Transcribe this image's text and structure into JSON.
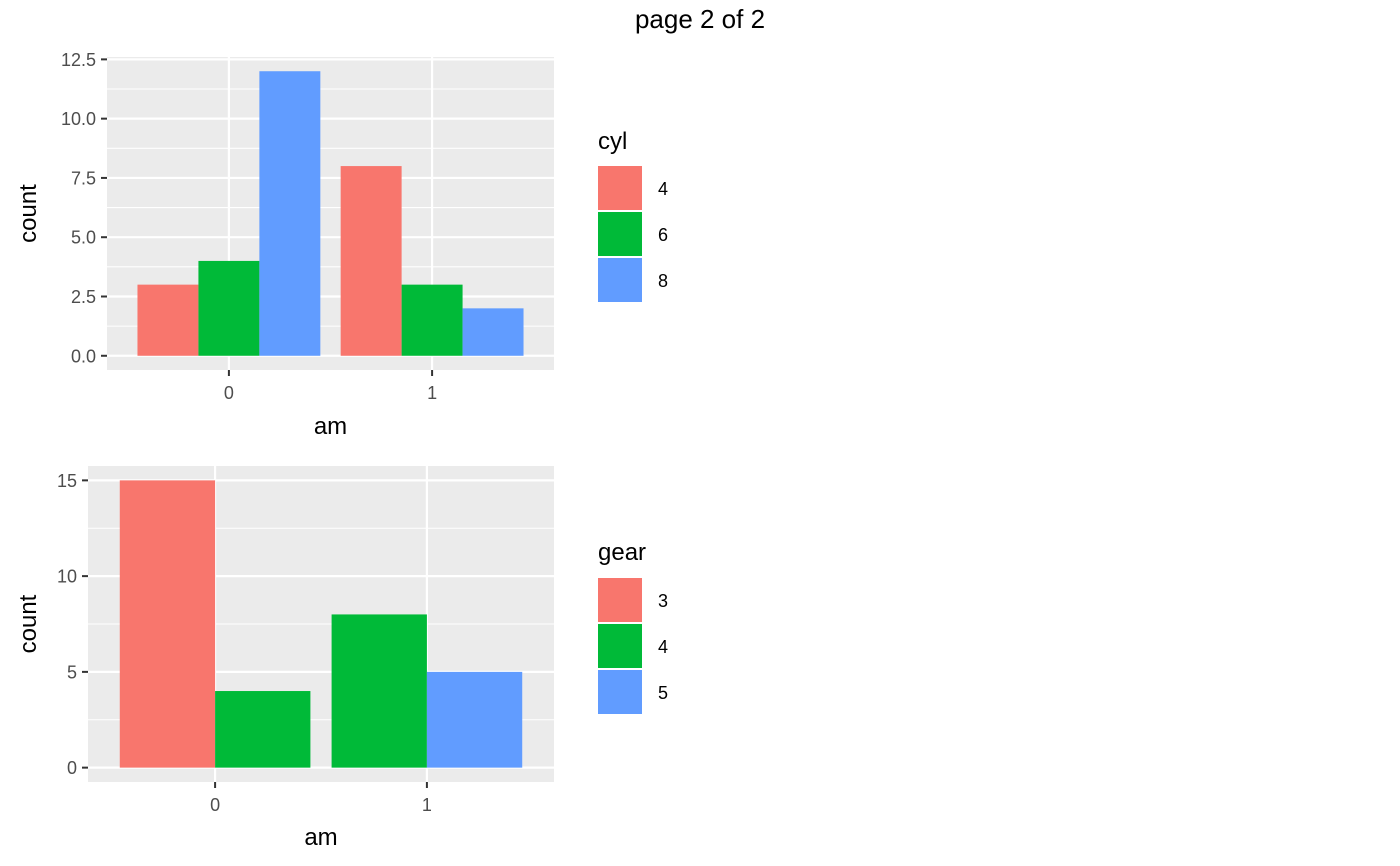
{
  "page_title": "page 2 of 2",
  "colors": {
    "panel_bg": "#EBEBEB",
    "grid": "#FFFFFF",
    "axis_text": "#4D4D4D",
    "tick": "#333333"
  },
  "chart_data": [
    {
      "type": "bar",
      "position": "dodge",
      "xlabel": "am",
      "ylabel": "count",
      "categories": [
        "0",
        "1"
      ],
      "ylim": [
        -0.6,
        12.6
      ],
      "yticks": [
        0,
        2.5,
        5,
        7.5,
        10,
        12.5
      ],
      "ytick_labels": [
        "0.0",
        "2.5",
        "5.0",
        "7.5",
        "10.0",
        "12.5"
      ],
      "legend": {
        "title": "cyl",
        "position": "right"
      },
      "series": [
        {
          "name": "4",
          "color": "#F8766D",
          "values": [
            3,
            8
          ]
        },
        {
          "name": "6",
          "color": "#00BA38",
          "values": [
            4,
            3
          ]
        },
        {
          "name": "8",
          "color": "#619CFF",
          "values": [
            12,
            2
          ]
        }
      ]
    },
    {
      "type": "bar",
      "position": "dodge",
      "xlabel": "am",
      "ylabel": "count",
      "categories": [
        "0",
        "1"
      ],
      "ylim": [
        -0.75,
        15.75
      ],
      "yticks": [
        0,
        5,
        10,
        15
      ],
      "ytick_labels": [
        "0",
        "5",
        "10",
        "15"
      ],
      "legend": {
        "title": "gear",
        "position": "right"
      },
      "series": [
        {
          "name": "3",
          "color": "#F8766D",
          "values": [
            15,
            0
          ]
        },
        {
          "name": "4",
          "color": "#00BA38",
          "values": [
            4,
            8
          ]
        },
        {
          "name": "5",
          "color": "#619CFF",
          "values": [
            0,
            5
          ]
        }
      ]
    }
  ]
}
